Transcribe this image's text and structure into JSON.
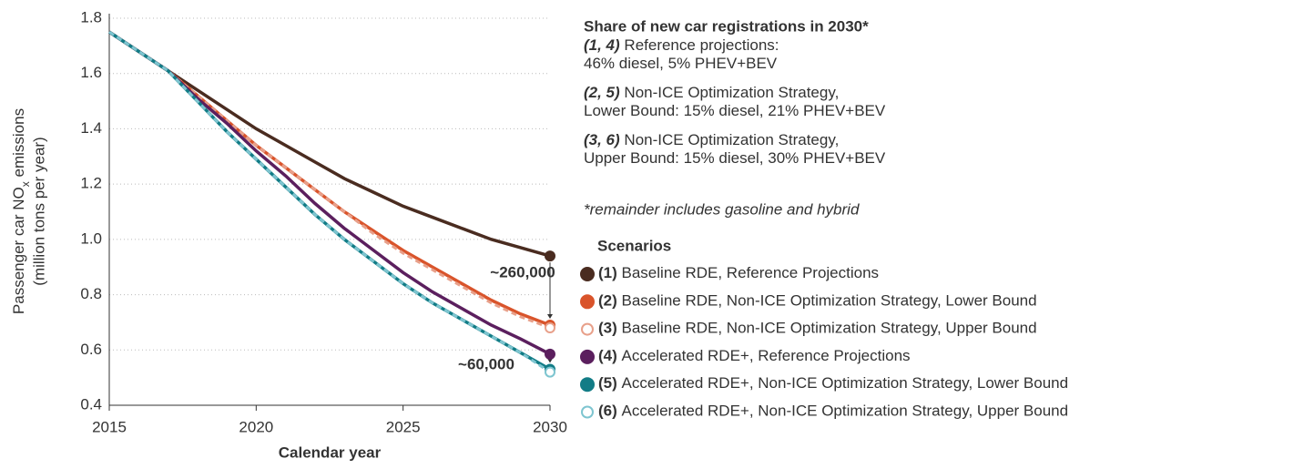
{
  "chart_data": {
    "type": "line",
    "x_label": "Calendar year",
    "y_label": [
      "Passenger car NO",
      "x",
      " emissions",
      "(million tons per year)"
    ],
    "x": [
      2015,
      2016,
      2017,
      2018,
      2019,
      2020,
      2021,
      2022,
      2023,
      2024,
      2025,
      2026,
      2027,
      2028,
      2029,
      2030
    ],
    "xlim": [
      2015,
      2030
    ],
    "xticks": [
      2015,
      2020,
      2025,
      2030
    ],
    "ylim": [
      0.4,
      1.8
    ],
    "yticks": [
      0.4,
      0.6,
      0.8,
      {
        "value": 1.0,
        "label": "1.0"
      },
      1.2,
      1.4,
      1.6,
      1.8
    ],
    "grid": true,
    "legend_title": "Scenarios",
    "series": [
      {
        "label": "(1)",
        "name": "Baseline RDE, Reference Projections",
        "color": "#4a2c20",
        "marker": "filled",
        "dash": false,
        "values": [
          1.75,
          1.68,
          1.61,
          1.54,
          1.47,
          1.4,
          1.34,
          1.28,
          1.22,
          1.17,
          1.12,
          1.08,
          1.04,
          1.0,
          0.97,
          0.94
        ]
      },
      {
        "label": "(2)",
        "name": "Baseline RDE, Non-ICE Optimization Strategy, Lower Bound",
        "color": "#d9542b",
        "marker": "filled",
        "dash": false,
        "values": [
          1.75,
          1.68,
          1.61,
          1.52,
          1.43,
          1.34,
          1.26,
          1.18,
          1.1,
          1.03,
          0.96,
          0.9,
          0.84,
          0.78,
          0.73,
          0.69
        ]
      },
      {
        "label": "(3)",
        "name": "Baseline RDE, Non-ICE Optimization Strategy, Upper Bound",
        "color": "#e8a08a",
        "marker": "hollow",
        "dash": true,
        "values": [
          1.75,
          1.68,
          1.61,
          1.52,
          1.43,
          1.34,
          1.26,
          1.18,
          1.1,
          1.02,
          0.95,
          0.89,
          0.83,
          0.77,
          0.72,
          0.68
        ]
      },
      {
        "label": "(4)",
        "name": "Accelerated RDE+, Reference Projections",
        "color": "#5b1f5e",
        "marker": "filled",
        "dash": false,
        "values": [
          1.75,
          1.68,
          1.61,
          1.51,
          1.42,
          1.32,
          1.23,
          1.13,
          1.04,
          0.96,
          0.88,
          0.81,
          0.75,
          0.69,
          0.64,
          0.585
        ]
      },
      {
        "label": "(5)",
        "name": "Accelerated RDE+, Non-ICE Optimization Strategy, Lower Bound",
        "color": "#127c86",
        "marker": "filled",
        "dash": false,
        "values": [
          1.75,
          1.68,
          1.61,
          1.5,
          1.39,
          1.29,
          1.19,
          1.09,
          1.0,
          0.92,
          0.84,
          0.77,
          0.71,
          0.65,
          0.59,
          0.53
        ]
      },
      {
        "label": "(6)",
        "name": "Accelerated RDE+, Non-ICE Optimization Strategy, Upper Bound",
        "color": "#7ec5d0",
        "marker": "hollow",
        "dash": true,
        "values": [
          1.75,
          1.68,
          1.61,
          1.5,
          1.39,
          1.29,
          1.19,
          1.09,
          1.0,
          0.92,
          0.84,
          0.77,
          0.71,
          0.65,
          0.59,
          0.52
        ]
      }
    ],
    "annotations": [
      "~260,000",
      "~60,000"
    ],
    "notes": {
      "title": "Share of new car registrations in 2030*",
      "items": [
        {
          "prefix": "(1, 4)",
          "lines": [
            " Reference projections:",
            "46% diesel, 5% PHEV+BEV"
          ]
        },
        {
          "prefix": "(2, 5)",
          "lines": [
            " Non-ICE Optimization Strategy,",
            "Lower Bound: 15% diesel, 21% PHEV+BEV"
          ]
        },
        {
          "prefix": "(3, 6)",
          "lines": [
            " Non-ICE Optimization Strategy,",
            "Upper Bound: 15% diesel, 30% PHEV+BEV"
          ]
        }
      ],
      "footnote": "*remainder includes gasoline and hybrid"
    }
  }
}
